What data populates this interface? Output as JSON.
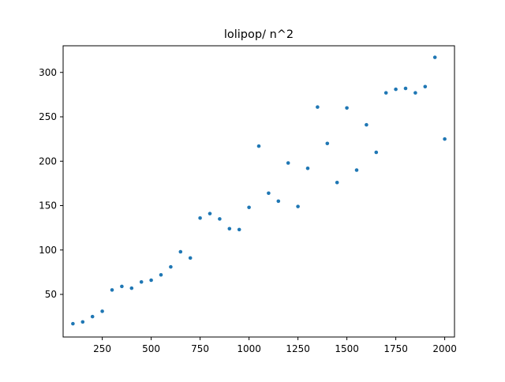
{
  "chart_data": {
    "type": "scatter",
    "title": "lolipop/ n^2",
    "xlabel": "",
    "ylabel": "",
    "xlim": [
      50,
      2050
    ],
    "ylim": [
      2,
      330
    ],
    "x_ticks": [
      250,
      500,
      750,
      1000,
      1250,
      1500,
      1750,
      2000
    ],
    "y_ticks": [
      50,
      100,
      150,
      200,
      250,
      300
    ],
    "grid": false,
    "marker_color": "#1f77b4",
    "series": [
      {
        "points": [
          {
            "x": 100,
            "y": 17
          },
          {
            "x": 150,
            "y": 19
          },
          {
            "x": 200,
            "y": 25
          },
          {
            "x": 250,
            "y": 31
          },
          {
            "x": 300,
            "y": 55
          },
          {
            "x": 350,
            "y": 59
          },
          {
            "x": 400,
            "y": 57
          },
          {
            "x": 450,
            "y": 64
          },
          {
            "x": 500,
            "y": 66
          },
          {
            "x": 550,
            "y": 72
          },
          {
            "x": 600,
            "y": 81
          },
          {
            "x": 650,
            "y": 98
          },
          {
            "x": 700,
            "y": 91
          },
          {
            "x": 750,
            "y": 136
          },
          {
            "x": 800,
            "y": 141
          },
          {
            "x": 850,
            "y": 135
          },
          {
            "x": 900,
            "y": 124
          },
          {
            "x": 950,
            "y": 123
          },
          {
            "x": 1000,
            "y": 148
          },
          {
            "x": 1050,
            "y": 217
          },
          {
            "x": 1100,
            "y": 164
          },
          {
            "x": 1150,
            "y": 155
          },
          {
            "x": 1200,
            "y": 198
          },
          {
            "x": 1250,
            "y": 149
          },
          {
            "x": 1300,
            "y": 192
          },
          {
            "x": 1350,
            "y": 261
          },
          {
            "x": 1400,
            "y": 220
          },
          {
            "x": 1450,
            "y": 176
          },
          {
            "x": 1500,
            "y": 260
          },
          {
            "x": 1550,
            "y": 190
          },
          {
            "x": 1600,
            "y": 241
          },
          {
            "x": 1650,
            "y": 210
          },
          {
            "x": 1700,
            "y": 277
          },
          {
            "x": 1750,
            "y": 281
          },
          {
            "x": 1800,
            "y": 282
          },
          {
            "x": 1850,
            "y": 277
          },
          {
            "x": 1900,
            "y": 284
          },
          {
            "x": 1950,
            "y": 317
          },
          {
            "x": 2000,
            "y": 225
          }
        ]
      }
    ]
  }
}
